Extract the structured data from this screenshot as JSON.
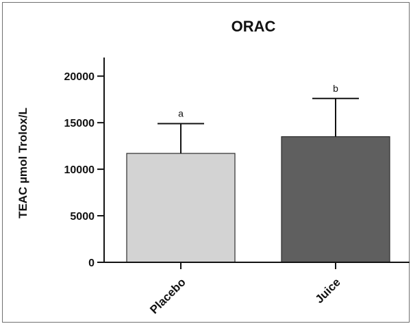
{
  "chart_data": {
    "type": "bar",
    "title": "ORAC",
    "xlabel": "",
    "ylabel": "TEAC µmol Trolox/L",
    "ylim": [
      0,
      22000
    ],
    "yticks": [
      0,
      5000,
      10000,
      15000,
      20000
    ],
    "categories": [
      "Placebo",
      "Juice"
    ],
    "values": [
      11700,
      13500
    ],
    "error_upper": [
      3200,
      4100
    ],
    "significance_labels": [
      "a",
      "b"
    ],
    "bar_colors": [
      "#d3d3d3",
      "#5f5f5f"
    ],
    "grid": false,
    "legend": "none"
  }
}
